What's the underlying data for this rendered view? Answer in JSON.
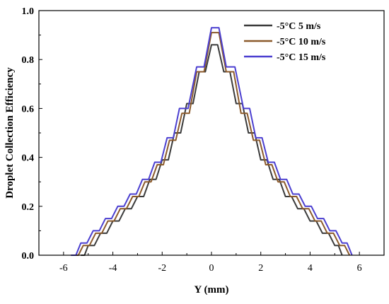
{
  "chart_data": {
    "type": "line",
    "xlabel": "Y (mm)",
    "ylabel": "Droplet Collection Efficiency",
    "xlim": [
      -7,
      7
    ],
    "ylim": [
      0,
      1.0
    ],
    "x_ticks": [
      -6,
      -4,
      -2,
      0,
      2,
      4,
      6
    ],
    "y_ticks": [
      0.0,
      0.2,
      0.4,
      0.6,
      0.8,
      1.0
    ],
    "x_tick_labels": [
      "-6",
      "-4",
      "-2",
      "0",
      "2",
      "4",
      "6"
    ],
    "y_tick_labels": [
      "0.0",
      "0.2",
      "0.4",
      "0.6",
      "0.8",
      "1.0"
    ],
    "legend_position": "top-right",
    "series": [
      {
        "name": "-5°C 5 m/s",
        "color": "#3b3b3b",
        "x": [
          -5.3,
          -5.0,
          -4.5,
          -4.0,
          -3.5,
          -3.0,
          -2.5,
          -2.0,
          -1.5,
          -1.0,
          -0.5,
          0.0,
          0.5,
          1.0,
          1.5,
          2.0,
          2.5,
          3.0,
          3.5,
          4.0,
          4.5,
          5.0,
          5.3
        ],
        "y": [
          0.0,
          0.04,
          0.09,
          0.14,
          0.19,
          0.24,
          0.31,
          0.39,
          0.5,
          0.62,
          0.75,
          0.86,
          0.75,
          0.62,
          0.5,
          0.39,
          0.31,
          0.24,
          0.19,
          0.14,
          0.09,
          0.04,
          0.0
        ]
      },
      {
        "name": "-5°C 10 m/s",
        "color": "#8b5a2b",
        "x": [
          -5.6,
          -5.2,
          -4.7,
          -4.2,
          -3.7,
          -3.2,
          -2.7,
          -2.2,
          -1.7,
          -1.2,
          -0.6,
          0.0,
          0.6,
          1.2,
          1.7,
          2.2,
          2.7,
          3.2,
          3.7,
          4.2,
          4.7,
          5.2,
          5.6
        ],
        "y": [
          0.0,
          0.04,
          0.09,
          0.14,
          0.19,
          0.24,
          0.3,
          0.37,
          0.47,
          0.58,
          0.75,
          0.91,
          0.75,
          0.58,
          0.47,
          0.37,
          0.3,
          0.24,
          0.19,
          0.14,
          0.09,
          0.04,
          0.0
        ]
      },
      {
        "name": "-5°C 15 m/s",
        "color": "#4b3fd0",
        "x": [
          -5.7,
          -5.3,
          -4.8,
          -4.3,
          -3.8,
          -3.3,
          -2.8,
          -2.3,
          -1.8,
          -1.3,
          -0.6,
          0.0,
          0.6,
          1.3,
          1.8,
          2.3,
          2.8,
          3.3,
          3.8,
          4.3,
          4.8,
          5.3,
          5.7
        ],
        "y": [
          0.0,
          0.05,
          0.1,
          0.15,
          0.2,
          0.25,
          0.31,
          0.38,
          0.48,
          0.6,
          0.77,
          0.93,
          0.77,
          0.6,
          0.48,
          0.38,
          0.31,
          0.25,
          0.2,
          0.15,
          0.1,
          0.05,
          0.0
        ]
      }
    ]
  }
}
